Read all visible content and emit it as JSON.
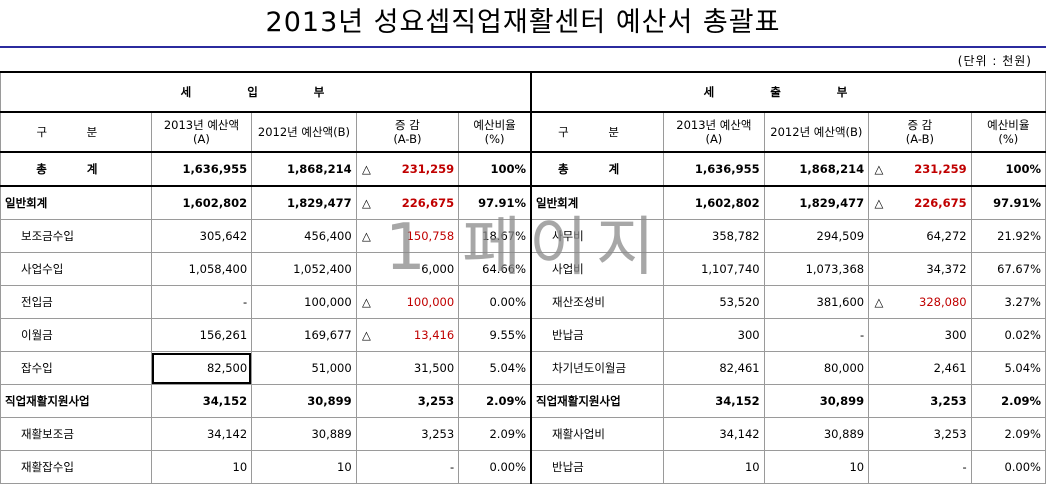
{
  "title": "2013년 성요셉직업재활센터 예산서 총괄표",
  "unit": "(단위 : 천원)",
  "watermark": "1 페이지",
  "income": {
    "section": "세 입 부",
    "headers": [
      "구 분",
      "2013년 예산액(A)",
      "2012년 예산액(B)",
      "증 감\n(A-B)",
      "예산비율\n(%)"
    ],
    "rows": [
      {
        "kind": "total",
        "label": "총 계",
        "a": "1,636,955",
        "b": "1,868,214",
        "tri": "△",
        "diff": "231,259",
        "neg": true,
        "ratio": "100%"
      },
      {
        "kind": "group",
        "label": "일반회계",
        "a": "1,602,802",
        "b": "1,829,477",
        "tri": "△",
        "diff": "226,675",
        "neg": true,
        "ratio": "97.91%"
      },
      {
        "kind": "item",
        "label": "보조금수입",
        "a": "305,642",
        "b": "456,400",
        "tri": "△",
        "diff": "150,758",
        "neg": true,
        "ratio": "18.67%"
      },
      {
        "kind": "item",
        "label": "사업수입",
        "a": "1,058,400",
        "b": "1,052,400",
        "tri": "",
        "diff": "6,000",
        "neg": false,
        "ratio": "64.66%"
      },
      {
        "kind": "item",
        "label": "전입금",
        "a": "-",
        "b": "100,000",
        "tri": "△",
        "diff": "100,000",
        "neg": true,
        "ratio": "0.00%"
      },
      {
        "kind": "item",
        "label": "이월금",
        "a": "156,261",
        "b": "169,677",
        "tri": "△",
        "diff": "13,416",
        "neg": true,
        "ratio": "9.55%"
      },
      {
        "kind": "item",
        "label": "잡수입",
        "a": "82,500",
        "b": "51,000",
        "tri": "",
        "diff": "31,500",
        "neg": false,
        "ratio": "5.04%"
      },
      {
        "kind": "group",
        "label": "직업재활지원사업",
        "a": "34,152",
        "b": "30,899",
        "tri": "",
        "diff": "3,253",
        "neg": false,
        "ratio": "2.09%"
      },
      {
        "kind": "item",
        "label": "재활보조금",
        "a": "34,142",
        "b": "30,889",
        "tri": "",
        "diff": "3,253",
        "neg": false,
        "ratio": "2.09%"
      },
      {
        "kind": "item",
        "label": "재활잡수입",
        "a": "10",
        "b": "10",
        "tri": "",
        "diff": "-",
        "neg": false,
        "ratio": "0.00%"
      }
    ]
  },
  "expense": {
    "section": "세 출 부",
    "headers": [
      "구 분",
      "2013년 예산액(A)",
      "2012년 예산액(B)",
      "증 감\n(A-B)",
      "예산비율\n(%)"
    ],
    "rows": [
      {
        "kind": "total",
        "label": "총 계",
        "a": "1,636,955",
        "b": "1,868,214",
        "tri": "△",
        "diff": "231,259",
        "neg": true,
        "ratio": "100%"
      },
      {
        "kind": "group",
        "label": "일반회계",
        "a": "1,602,802",
        "b": "1,829,477",
        "tri": "△",
        "diff": "226,675",
        "neg": true,
        "ratio": "97.91%"
      },
      {
        "kind": "item",
        "label": "사무비",
        "a": "358,782",
        "b": "294,509",
        "tri": "",
        "diff": "64,272",
        "neg": false,
        "ratio": "21.92%"
      },
      {
        "kind": "item",
        "label": "사업비",
        "a": "1,107,740",
        "b": "1,073,368",
        "tri": "",
        "diff": "34,372",
        "neg": false,
        "ratio": "67.67%"
      },
      {
        "kind": "item",
        "label": "재산조성비",
        "a": "53,520",
        "b": "381,600",
        "tri": "△",
        "diff": "328,080",
        "neg": true,
        "ratio": "3.27%"
      },
      {
        "kind": "item",
        "label": "반납금",
        "a": "300",
        "b": "-",
        "tri": "",
        "diff": "300",
        "neg": false,
        "ratio": "0.02%"
      },
      {
        "kind": "item",
        "label": "차기년도이월금",
        "a": "82,461",
        "b": "80,000",
        "tri": "",
        "diff": "2,461",
        "neg": false,
        "ratio": "5.04%"
      },
      {
        "kind": "group",
        "label": "직업재활지원사업",
        "a": "34,152",
        "b": "30,899",
        "tri": "",
        "diff": "3,253",
        "neg": false,
        "ratio": "2.09%"
      },
      {
        "kind": "item",
        "label": "재활사업비",
        "a": "34,142",
        "b": "30,889",
        "tri": "",
        "diff": "3,253",
        "neg": false,
        "ratio": "2.09%"
      },
      {
        "kind": "item",
        "label": "반납금",
        "a": "10",
        "b": "10",
        "tri": "",
        "diff": "-",
        "neg": false,
        "ratio": "0.00%"
      }
    ]
  }
}
